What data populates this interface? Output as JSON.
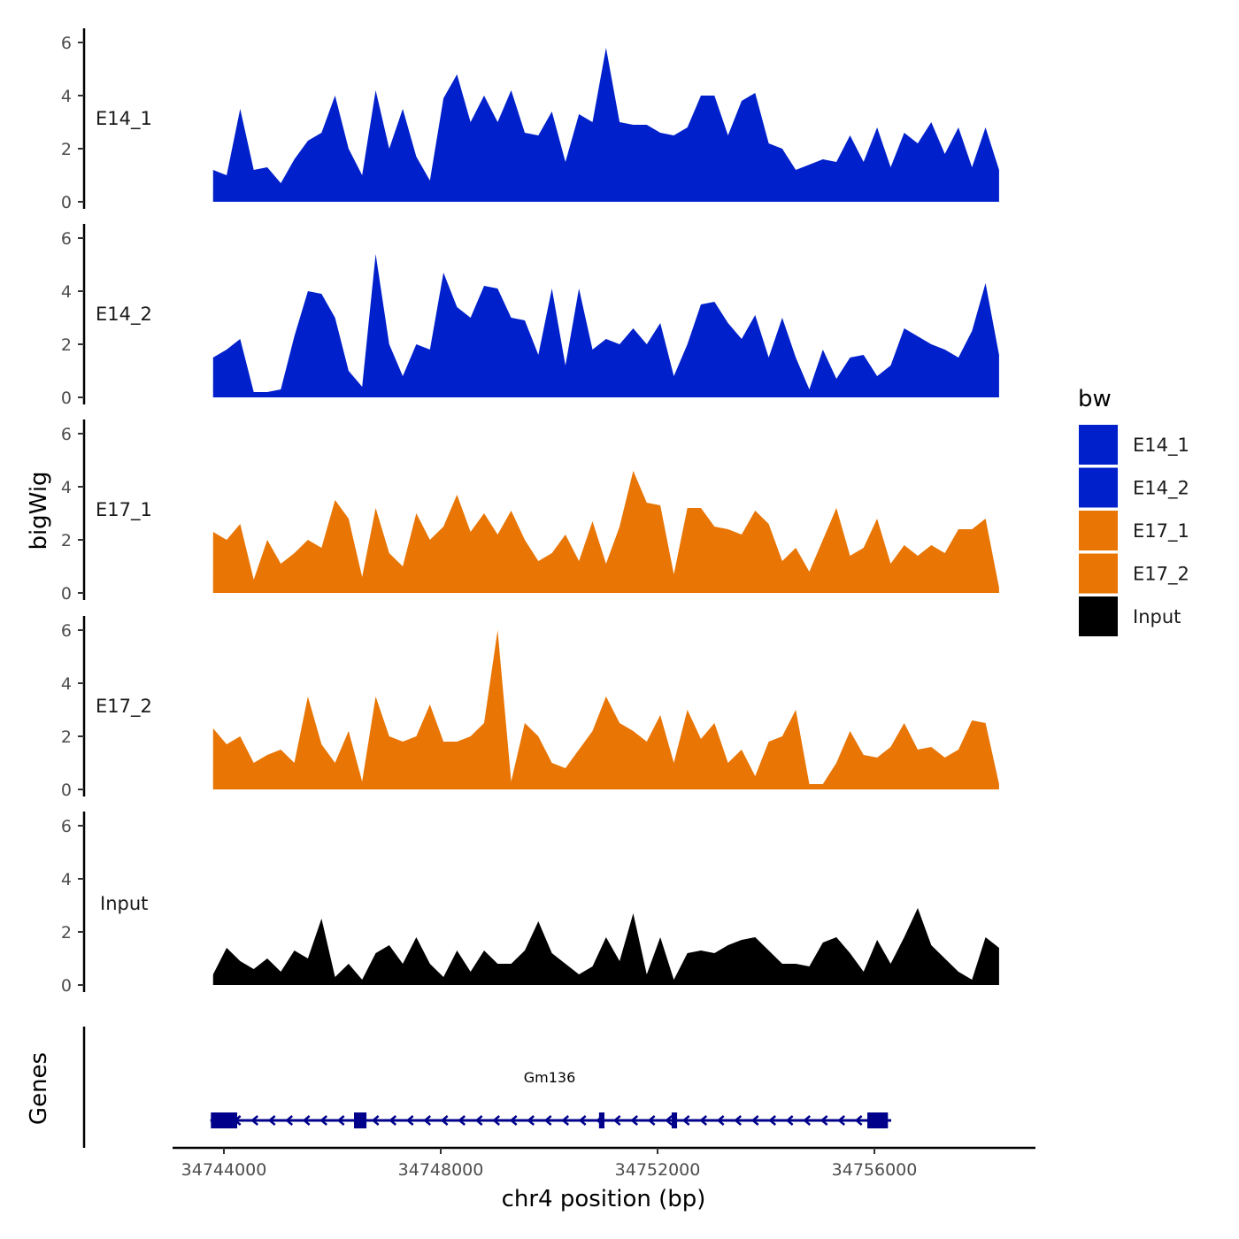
{
  "chart_data": {
    "type": "area",
    "xlabel": "chr4 position (bp)",
    "ylabel": "bigWig",
    "genes_label": "Genes",
    "x_ticks": [
      34744000,
      34748000,
      34752000,
      34756000
    ],
    "x_tick_labels": [
      "34744000",
      "34748000",
      "34752000",
      "34756000"
    ],
    "xlim": [
      34743053,
      34758971
    ],
    "ylim": [
      0,
      6.5
    ],
    "y_ticks": [
      0,
      2,
      4,
      6
    ],
    "y_tick_labels": [
      "0",
      "2",
      "4",
      "6"
    ],
    "x_start": 34743800,
    "x_step": 250,
    "legend": {
      "title": "bw",
      "placement": "right"
    },
    "series": [
      {
        "name": "E14_1",
        "color": "#0020CC",
        "values": [
          1.2,
          1.0,
          3.5,
          1.2,
          1.3,
          0.7,
          1.6,
          2.3,
          2.6,
          4.0,
          2.0,
          1.0,
          4.2,
          2.0,
          3.5,
          1.7,
          0.8,
          3.9,
          4.8,
          3.0,
          4.0,
          3.0,
          4.2,
          2.6,
          2.5,
          3.4,
          1.5,
          3.3,
          3.0,
          5.8,
          3.0,
          2.9,
          2.9,
          2.6,
          2.5,
          2.8,
          4.0,
          4.0,
          2.5,
          3.8,
          4.1,
          2.2,
          2.0,
          1.2,
          1.4,
          1.6,
          1.5,
          2.5,
          1.5,
          2.8,
          1.3,
          2.6,
          2.2,
          3.0,
          1.8,
          2.8,
          1.3,
          2.8,
          1.2
        ]
      },
      {
        "name": "E14_2",
        "color": "#0020CC",
        "values": [
          1.5,
          1.8,
          2.2,
          0.2,
          0.2,
          0.3,
          2.3,
          4.0,
          3.9,
          3.0,
          1.0,
          0.4,
          5.4,
          2.0,
          0.8,
          2.0,
          1.8,
          4.7,
          3.4,
          3.0,
          4.2,
          4.1,
          3.0,
          2.9,
          1.6,
          4.1,
          1.2,
          4.1,
          1.8,
          2.2,
          2.0,
          2.6,
          2.0,
          2.8,
          0.8,
          2.0,
          3.5,
          3.6,
          2.8,
          2.2,
          3.1,
          1.5,
          3.0,
          1.5,
          0.3,
          1.8,
          0.7,
          1.5,
          1.6,
          0.8,
          1.2,
          2.6,
          2.3,
          2.0,
          1.8,
          1.5,
          2.5,
          4.3,
          1.6
        ]
      },
      {
        "name": "E17_1",
        "color": "#E87504",
        "values": [
          2.3,
          2.0,
          2.6,
          0.5,
          2.0,
          1.1,
          1.5,
          2.0,
          1.7,
          3.5,
          2.8,
          0.6,
          3.2,
          1.5,
          1.0,
          3.0,
          2.0,
          2.5,
          3.7,
          2.3,
          3.0,
          2.2,
          3.1,
          2.0,
          1.2,
          1.5,
          2.2,
          1.2,
          2.7,
          1.1,
          2.5,
          4.6,
          3.4,
          3.3,
          0.7,
          3.2,
          3.2,
          2.5,
          2.4,
          2.2,
          3.1,
          2.6,
          1.2,
          1.7,
          0.8,
          2.0,
          3.2,
          1.4,
          1.7,
          2.8,
          1.1,
          1.8,
          1.4,
          1.8,
          1.5,
          2.4,
          2.4,
          2.8,
          0.2
        ]
      },
      {
        "name": "E17_2",
        "color": "#E87504",
        "values": [
          2.3,
          1.7,
          2.0,
          1.0,
          1.3,
          1.5,
          1.0,
          3.5,
          1.7,
          1.0,
          2.2,
          0.3,
          3.5,
          2.0,
          1.8,
          2.0,
          3.2,
          1.8,
          1.8,
          2.0,
          2.5,
          6.0,
          0.3,
          2.5,
          2.0,
          1.0,
          0.8,
          1.5,
          2.2,
          3.5,
          2.5,
          2.2,
          1.8,
          2.8,
          1.0,
          3.0,
          1.9,
          2.5,
          1.0,
          1.5,
          0.5,
          1.8,
          2.0,
          3.0,
          0.2,
          0.2,
          1.0,
          2.2,
          1.3,
          1.2,
          1.6,
          2.5,
          1.5,
          1.6,
          1.2,
          1.5,
          2.6,
          2.5,
          0.2
        ]
      },
      {
        "name": "Input",
        "color": "#000000",
        "values": [
          0.4,
          1.4,
          0.9,
          0.6,
          1.0,
          0.5,
          1.3,
          1.0,
          2.5,
          0.3,
          0.8,
          0.2,
          1.2,
          1.5,
          0.8,
          1.8,
          0.8,
          0.3,
          1.3,
          0.5,
          1.3,
          0.8,
          0.8,
          1.3,
          2.4,
          1.2,
          0.8,
          0.4,
          0.7,
          1.8,
          0.9,
          2.7,
          0.4,
          1.8,
          0.2,
          1.2,
          1.3,
          1.2,
          1.5,
          1.7,
          1.8,
          1.3,
          0.8,
          0.8,
          0.7,
          1.6,
          1.8,
          1.2,
          0.5,
          1.7,
          0.8,
          1.8,
          2.9,
          1.5,
          1.0,
          0.5,
          0.2,
          1.8,
          1.4
        ]
      }
    ],
    "gene": {
      "name": "Gm136",
      "color": "#00008B",
      "strand": "-",
      "start": 34743750,
      "end": 34756310,
      "exons": [
        [
          34743760,
          34744245
        ],
        [
          34746400,
          34746630
        ],
        [
          34750920,
          34751020
        ],
        [
          34752260,
          34752360
        ],
        [
          34755870,
          34756250
        ]
      ]
    }
  }
}
